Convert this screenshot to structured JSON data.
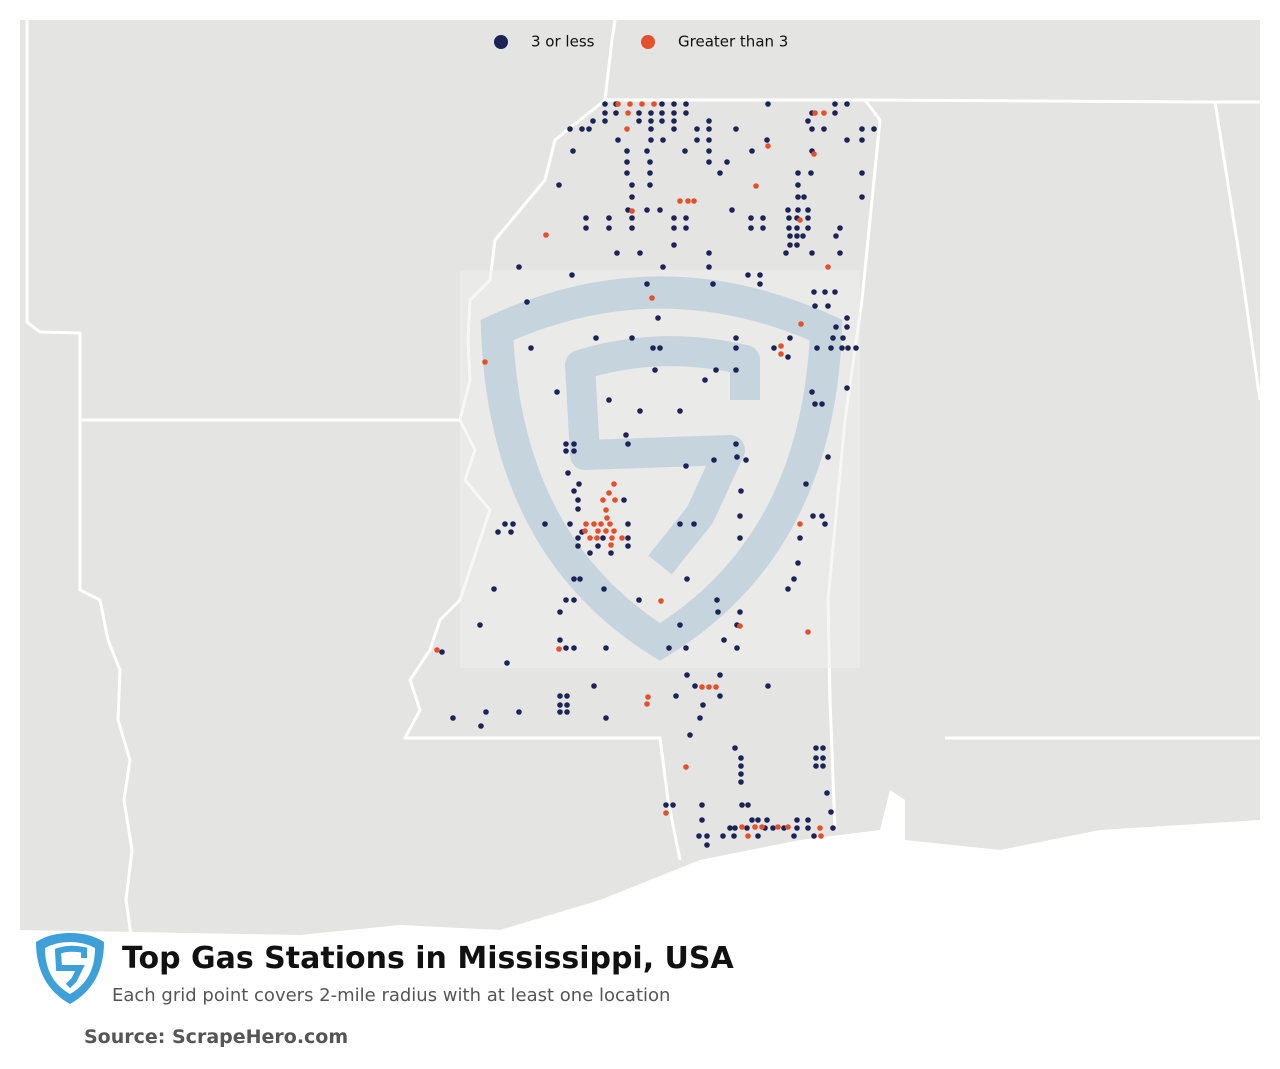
{
  "legend": {
    "items": [
      {
        "label": "3 or less",
        "color": "#1b2357"
      },
      {
        "label": "Greater than 3",
        "color": "#e4502b"
      }
    ]
  },
  "footer": {
    "title": "Top Gas Stations in Mississippi, USA",
    "subtitle": "Each grid point covers 2-mile radius with at least one location",
    "source": "Source: ScrapeHero.com"
  }
}
